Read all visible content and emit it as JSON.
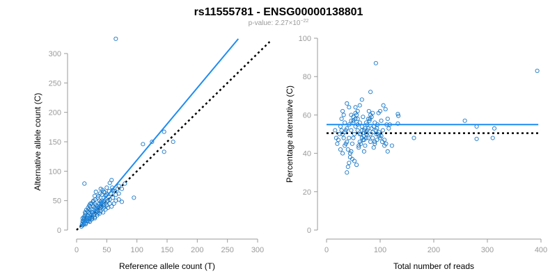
{
  "figure": {
    "title": "rs11555781 - ENSG00000138801",
    "pvalue_prefix": "p-value: 2.27×10",
    "pvalue_exponent": "−22"
  },
  "colors": {
    "points": "#1a78c6",
    "fit_line": "#1e8cf0",
    "reference_line": "#000000",
    "axis": "#9a9a9a"
  },
  "chart_data": [
    {
      "type": "scatter",
      "xlabel": "Reference allele count (T)",
      "ylabel": "Alternative allele count (C)",
      "xlim": [
        0,
        300
      ],
      "ylim": [
        0,
        300
      ],
      "xticks": [
        0,
        50,
        100,
        150,
        200,
        250,
        300
      ],
      "yticks": [
        0,
        50,
        100,
        150,
        200,
        250,
        300
      ],
      "grid": false,
      "points": [
        [
          65,
          325
        ],
        [
          13,
          79
        ],
        [
          110,
          146
        ],
        [
          125,
          150
        ],
        [
          145,
          167
        ],
        [
          160,
          150
        ],
        [
          145,
          133
        ],
        [
          80,
          79
        ],
        [
          95,
          55
        ],
        [
          75,
          48
        ],
        [
          70,
          52
        ],
        [
          65,
          50
        ],
        [
          60,
          68
        ],
        [
          70,
          75
        ],
        [
          55,
          80
        ],
        [
          58,
          85
        ],
        [
          50,
          72
        ],
        [
          45,
          65
        ],
        [
          42,
          60
        ],
        [
          40,
          70
        ],
        [
          35,
          55
        ],
        [
          32,
          65
        ],
        [
          38,
          50
        ],
        [
          30,
          58
        ],
        [
          28,
          50
        ],
        [
          25,
          45
        ],
        [
          22,
          40
        ],
        [
          20,
          35
        ],
        [
          18,
          32
        ],
        [
          15,
          28
        ],
        [
          14,
          25
        ],
        [
          12,
          22
        ],
        [
          12,
          18
        ],
        [
          10,
          15
        ],
        [
          12,
          10
        ],
        [
          15,
          12
        ],
        [
          18,
          15
        ],
        [
          20,
          18
        ],
        [
          22,
          20
        ],
        [
          25,
          22
        ],
        [
          28,
          25
        ],
        [
          30,
          28
        ],
        [
          32,
          30
        ],
        [
          35,
          32
        ],
        [
          38,
          35
        ],
        [
          40,
          38
        ],
        [
          42,
          40
        ],
        [
          45,
          42
        ],
        [
          48,
          45
        ],
        [
          50,
          48
        ],
        [
          52,
          50
        ],
        [
          55,
          52
        ],
        [
          55,
          45
        ],
        [
          50,
          42
        ],
        [
          45,
          38
        ],
        [
          40,
          32
        ],
        [
          35,
          28
        ],
        [
          30,
          22
        ],
        [
          25,
          18
        ],
        [
          20,
          15
        ],
        [
          15,
          10
        ],
        [
          18,
          25
        ],
        [
          22,
          28
        ],
        [
          25,
          30
        ],
        [
          28,
          35
        ],
        [
          30,
          38
        ],
        [
          32,
          42
        ],
        [
          35,
          40
        ],
        [
          38,
          45
        ],
        [
          40,
          48
        ],
        [
          42,
          50
        ],
        [
          45,
          55
        ],
        [
          48,
          58
        ],
        [
          50,
          60
        ],
        [
          30,
          45
        ],
        [
          28,
          40
        ],
        [
          25,
          35
        ],
        [
          20,
          30
        ],
        [
          18,
          20
        ],
        [
          16,
          18
        ],
        [
          14,
          15
        ],
        [
          12,
          12
        ],
        [
          10,
          8
        ],
        [
          8,
          6
        ],
        [
          35,
          35
        ],
        [
          40,
          42
        ],
        [
          45,
          48
        ],
        [
          60,
          55
        ],
        [
          65,
          60
        ],
        [
          70,
          62
        ],
        [
          75,
          70
        ],
        [
          62,
          45
        ],
        [
          58,
          40
        ],
        [
          52,
          38
        ],
        [
          48,
          35
        ],
        [
          44,
          30
        ],
        [
          38,
          28
        ],
        [
          34,
          25
        ],
        [
          30,
          20
        ],
        [
          26,
          20
        ],
        [
          24,
          25
        ],
        [
          27,
          30
        ],
        [
          33,
          36
        ],
        [
          36,
          38
        ],
        [
          41,
          45
        ],
        [
          46,
          50
        ],
        [
          53,
          56
        ],
        [
          57,
          62
        ],
        [
          63,
          66
        ],
        [
          68,
          70
        ],
        [
          22,
          14
        ],
        [
          17,
          22
        ],
        [
          13,
          20
        ],
        [
          11,
          14
        ],
        [
          9,
          10
        ],
        [
          10,
          20
        ],
        [
          14,
          30
        ],
        [
          16,
          34
        ],
        [
          19,
          38
        ],
        [
          21,
          42
        ],
        [
          23,
          45
        ],
        [
          27,
          48
        ],
        [
          31,
          52
        ],
        [
          36,
          58
        ],
        [
          39,
          62
        ],
        [
          43,
          68
        ],
        [
          47,
          64
        ],
        [
          54,
          66
        ],
        [
          59,
          72
        ]
      ],
      "fit_line": [
        [
          8,
          6
        ],
        [
          268,
          325
        ]
      ],
      "reference_line": [
        [
          0,
          0
        ],
        [
          320,
          320
        ]
      ]
    },
    {
      "type": "scatter",
      "xlabel": "Total number of reads",
      "ylabel": "Percentage alternative (C)",
      "xlim": [
        0,
        400
      ],
      "ylim": [
        0,
        100
      ],
      "xticks": [
        0,
        100,
        200,
        300,
        400
      ],
      "yticks": [
        0,
        20,
        40,
        60,
        80,
        100
      ],
      "grid": false,
      "points": [
        [
          393,
          83
        ],
        [
          92,
          87
        ],
        [
          82,
          72
        ],
        [
          258,
          57
        ],
        [
          280,
          54
        ],
        [
          313,
          53
        ],
        [
          280,
          47.5
        ],
        [
          310,
          48
        ],
        [
          163,
          48
        ],
        [
          133,
          60.5
        ],
        [
          134,
          59.5
        ],
        [
          133,
          55.5
        ],
        [
          122,
          44
        ],
        [
          114,
          41
        ],
        [
          111,
          45
        ],
        [
          108,
          47
        ],
        [
          105,
          52
        ],
        [
          102,
          57
        ],
        [
          100,
          62
        ],
        [
          97,
          61
        ],
        [
          95,
          55
        ],
        [
          93,
          50
        ],
        [
          90,
          46
        ],
        [
          88,
          43
        ],
        [
          86,
          51
        ],
        [
          84,
          53
        ],
        [
          81,
          58
        ],
        [
          79,
          62
        ],
        [
          76,
          52
        ],
        [
          74,
          48
        ],
        [
          72,
          44
        ],
        [
          70,
          41
        ],
        [
          68,
          59
        ],
        [
          66,
          52
        ],
        [
          64,
          50
        ],
        [
          62,
          46
        ],
        [
          60,
          44
        ],
        [
          58,
          55
        ],
        [
          56,
          60
        ],
        [
          54,
          64
        ],
        [
          52,
          50
        ],
        [
          50,
          48
        ],
        [
          48,
          45
        ],
        [
          46,
          41
        ],
        [
          44,
          38
        ],
        [
          42,
          35
        ],
        [
          40,
          33
        ],
        [
          38,
          30
        ],
        [
          36,
          52
        ],
        [
          34,
          56
        ],
        [
          32,
          60
        ],
        [
          30,
          62
        ],
        [
          28,
          58
        ],
        [
          26,
          54
        ],
        [
          24,
          50
        ],
        [
          22,
          47
        ],
        [
          20,
          45
        ],
        [
          18,
          48
        ],
        [
          16,
          52
        ],
        [
          38,
          66
        ],
        [
          42,
          64
        ],
        [
          46,
          60
        ],
        [
          50,
          57
        ],
        [
          54,
          54
        ],
        [
          58,
          52
        ],
        [
          62,
          50
        ],
        [
          66,
          48
        ],
        [
          70,
          47
        ],
        [
          74,
          56
        ],
        [
          78,
          58
        ],
        [
          82,
          60
        ],
        [
          86,
          61
        ],
        [
          90,
          56
        ],
        [
          94,
          53
        ],
        [
          98,
          51
        ],
        [
          102,
          49
        ],
        [
          106,
          65
        ],
        [
          110,
          63
        ],
        [
          114,
          58
        ],
        [
          118,
          55
        ],
        [
          26,
          42
        ],
        [
          30,
          40
        ],
        [
          34,
          44
        ],
        [
          38,
          46
        ],
        [
          42,
          48
        ],
        [
          46,
          52
        ],
        [
          50,
          56
        ],
        [
          54,
          58
        ],
        [
          58,
          62
        ],
        [
          62,
          65
        ],
        [
          66,
          68
        ],
        [
          70,
          49
        ],
        [
          74,
          51
        ],
        [
          78,
          53
        ],
        [
          82,
          50
        ],
        [
          86,
          48
        ],
        [
          90,
          45
        ],
        [
          94,
          47
        ],
        [
          98,
          49
        ],
        [
          30,
          50
        ],
        [
          34,
          51
        ],
        [
          38,
          53
        ],
        [
          42,
          55
        ],
        [
          46,
          57
        ],
        [
          50,
          59
        ],
        [
          54,
          61
        ],
        [
          58,
          58
        ],
        [
          62,
          56
        ],
        [
          66,
          54
        ],
        [
          70,
          52
        ],
        [
          74,
          50
        ],
        [
          78,
          48
        ],
        [
          82,
          46
        ],
        [
          28,
          52
        ],
        [
          32,
          48
        ],
        [
          36,
          45
        ],
        [
          40,
          42
        ],
        [
          44,
          40
        ],
        [
          48,
          37
        ],
        [
          52,
          36
        ],
        [
          56,
          34
        ],
        [
          60,
          43
        ],
        [
          64,
          45
        ],
        [
          68,
          47
        ],
        [
          72,
          53
        ],
        [
          76,
          55
        ],
        [
          80,
          57
        ],
        [
          84,
          59
        ],
        [
          88,
          54
        ],
        [
          92,
          52
        ],
        [
          96,
          50
        ],
        [
          100,
          48
        ],
        [
          104,
          46
        ],
        [
          108,
          44
        ],
        [
          112,
          55
        ],
        [
          116,
          53
        ]
      ],
      "fit_line": [
        [
          0,
          55
        ],
        [
          395,
          55
        ]
      ],
      "reference_line": [
        [
          0,
          50.5
        ],
        [
          395,
          50.5
        ]
      ]
    }
  ]
}
